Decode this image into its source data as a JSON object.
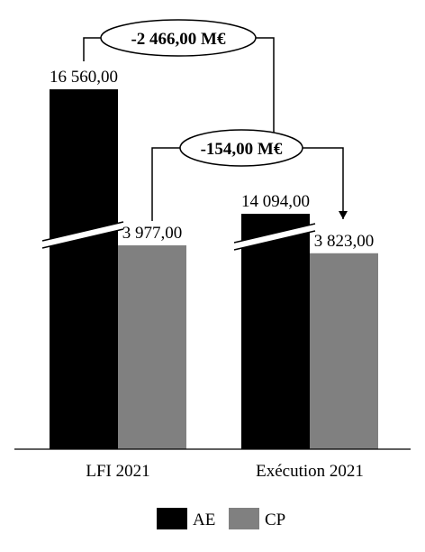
{
  "chart_data": {
    "type": "bar",
    "categories": [
      "LFI 2021",
      "Exécution 2021"
    ],
    "series": [
      {
        "name": "AE",
        "color": "#000000",
        "values": [
          16560,
          14094
        ],
        "labels": [
          "16 560,00",
          "14 094,00"
        ]
      },
      {
        "name": "CP",
        "color": "#808080",
        "values": [
          3977,
          3823
        ],
        "labels": [
          "3 977,00",
          "3 823,00"
        ]
      }
    ],
    "axis_break": true,
    "annotations": [
      {
        "label": "-2 466,00 M€",
        "series": "AE"
      },
      {
        "label": "-154,00 M€",
        "series": "CP"
      }
    ],
    "legend_position": "bottom"
  }
}
